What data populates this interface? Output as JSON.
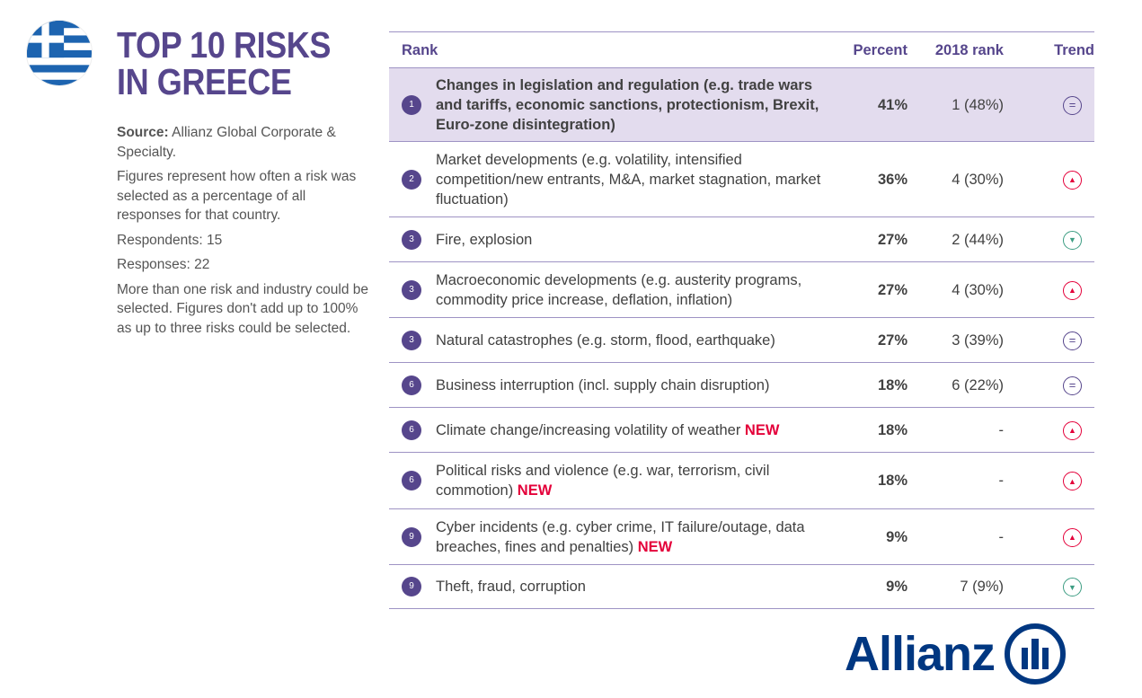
{
  "title_line1": "TOP 10 RISKS",
  "title_line2": "IN GREECE",
  "side": {
    "source_label": "Source:",
    "source_text": " Allianz Global Corporate & Specialty.",
    "figures": "Figures represent how often a risk was selected as a percentage of all responses for that country.",
    "respondents": "Respondents: 15",
    "responses": "Responses: 22",
    "note": "More than one risk and industry could be selected. Figures don't add up to 100% as up to three risks could be selected."
  },
  "headers": {
    "rank": "Rank",
    "percent": "Percent",
    "rank2018": "2018 rank",
    "trend": "Trend"
  },
  "rows": [
    {
      "rank": "1",
      "risk": "Changes in legislation and regulation (e.g. trade wars and tariffs, economic sanctions, protectionism, Brexit, Euro-zone disintegration)",
      "new": "",
      "percent": "41%",
      "rank2018": "1 (48%)",
      "trend": "same"
    },
    {
      "rank": "2",
      "risk": "Market developments (e.g. volatility, intensified competition/new entrants, M&A, market stagnation, market fluctuation)",
      "new": "",
      "percent": "36%",
      "rank2018": "4 (30%)",
      "trend": "up"
    },
    {
      "rank": "3",
      "risk": "Fire, explosion",
      "new": "",
      "percent": "27%",
      "rank2018": "2 (44%)",
      "trend": "down"
    },
    {
      "rank": "3",
      "risk": "Macroeconomic developments (e.g. austerity programs, commodity price increase, deflation, inflation)",
      "new": "",
      "percent": "27%",
      "rank2018": "4 (30%)",
      "trend": "up"
    },
    {
      "rank": "3",
      "risk": "Natural catastrophes (e.g. storm, flood, earthquake)",
      "new": "",
      "percent": "27%",
      "rank2018": "3 (39%)",
      "trend": "same"
    },
    {
      "rank": "6",
      "risk": "Business interruption (incl. supply chain disruption)",
      "new": "",
      "percent": "18%",
      "rank2018": "6 (22%)",
      "trend": "same"
    },
    {
      "rank": "6",
      "risk": "Climate change/increasing volatility of weather ",
      "new": "NEW",
      "percent": "18%",
      "rank2018": "-",
      "trend": "up"
    },
    {
      "rank": "6",
      "risk": "Political risks and violence (e.g. war, terrorism, civil commotion) ",
      "new": "NEW",
      "percent": "18%",
      "rank2018": "-",
      "trend": "up"
    },
    {
      "rank": "9",
      "risk": "Cyber incidents (e.g. cyber crime, IT failure/outage, data breaches, fines and penalties) ",
      "new": "NEW",
      "percent": "9%",
      "rank2018": "-",
      "trend": "up"
    },
    {
      "rank": "9",
      "risk": "Theft, fraud, corruption",
      "new": "",
      "percent": "9%",
      "rank2018": "7 (9%)",
      "trend": "down"
    }
  ],
  "logo": "Allianz",
  "colors": {
    "brand": "#56468c",
    "new": "#e4003a",
    "up": "#e4003a",
    "down": "#3d9d83",
    "allianz": "#003781"
  }
}
